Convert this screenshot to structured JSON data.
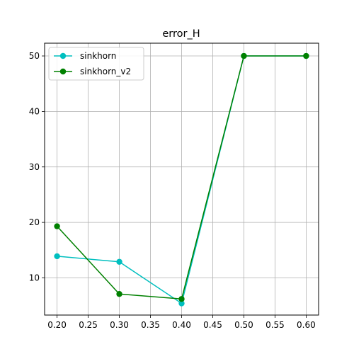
{
  "chart_data": {
    "type": "line",
    "title": "error_H",
    "xlabel": "",
    "ylabel": "",
    "x": [
      0.2,
      0.3,
      0.4,
      0.5,
      0.6
    ],
    "xlim": [
      0.18,
      0.62
    ],
    "ylim": [
      3.3,
      52.3
    ],
    "xticks": [
      0.2,
      0.25,
      0.3,
      0.35,
      0.4,
      0.45,
      0.5,
      0.55,
      0.6
    ],
    "xtick_labels": [
      "0.20",
      "0.25",
      "0.30",
      "0.35",
      "0.40",
      "0.45",
      "0.50",
      "0.55",
      "0.60"
    ],
    "yticks": [
      10,
      20,
      30,
      40,
      50
    ],
    "ytick_labels": [
      "10",
      "20",
      "30",
      "40",
      "50"
    ],
    "grid": true,
    "legend_position": "top-left",
    "series": [
      {
        "name": "sinkhorn",
        "color": "#00bfbf",
        "values": [
          13.9,
          12.9,
          5.4,
          50.0,
          50.0
        ]
      },
      {
        "name": "sinkhorn_v2",
        "color": "#008000",
        "values": [
          19.3,
          7.1,
          6.2,
          50.0,
          50.0
        ]
      }
    ]
  }
}
